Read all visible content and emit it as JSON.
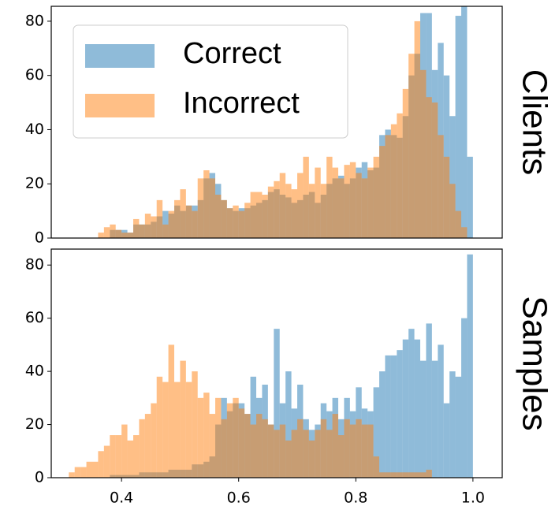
{
  "chart_data": [
    {
      "type": "histogram",
      "title": "Clients",
      "alpha": 0.5,
      "legend": "upper left",
      "bins": [
        0.3,
        0.31,
        0.32,
        0.33,
        0.34,
        0.35,
        0.36,
        0.37,
        0.38,
        0.39,
        0.4,
        0.41,
        0.42,
        0.43,
        0.44,
        0.45,
        0.46,
        0.47,
        0.48,
        0.49,
        0.5,
        0.51,
        0.52,
        0.53,
        0.54,
        0.55,
        0.56,
        0.57,
        0.58,
        0.59,
        0.6,
        0.61,
        0.62,
        0.63,
        0.64,
        0.65,
        0.66,
        0.67,
        0.68,
        0.69,
        0.7,
        0.71,
        0.72,
        0.73,
        0.74,
        0.75,
        0.76,
        0.77,
        0.78,
        0.79,
        0.8,
        0.81,
        0.82,
        0.83,
        0.84,
        0.85,
        0.86,
        0.87,
        0.88,
        0.89,
        0.9,
        0.91,
        0.92,
        0.93,
        0.94,
        0.95,
        0.96,
        0.97,
        0.98,
        0.99,
        1.0
      ],
      "xlim": [
        0.28,
        1.05
      ],
      "ylim": [
        0,
        85.5
      ],
      "yticks": [
        0,
        20,
        40,
        60,
        80
      ],
      "series": [
        {
          "name": "Correct",
          "color": "#1f77b4",
          "values": [
            0,
            0,
            0,
            0,
            0,
            0,
            0,
            0,
            3,
            3,
            3,
            2,
            5,
            5,
            5,
            6,
            8,
            10,
            9,
            12,
            10,
            12,
            12,
            14,
            22,
            24,
            20,
            14,
            11,
            10,
            11,
            11,
            12,
            13,
            14,
            17,
            18,
            16,
            15,
            13,
            14,
            16,
            17,
            13,
            16,
            20,
            22,
            23,
            20,
            22,
            26,
            28,
            25,
            26,
            38,
            40,
            38,
            37,
            45,
            60,
            68,
            83,
            83,
            62,
            72,
            60,
            45,
            82,
            88,
            30
          ]
        },
        {
          "name": "Incorrect",
          "color": "#ff7f0e",
          "values": [
            0,
            0,
            0,
            0,
            0,
            0,
            2,
            4,
            5,
            3,
            2,
            2,
            7,
            5,
            9,
            8,
            14,
            5,
            10,
            14,
            18,
            12,
            10,
            22,
            25,
            22,
            16,
            14,
            11,
            12,
            10,
            13,
            17,
            17,
            16,
            19,
            21,
            24,
            20,
            18,
            24,
            30,
            20,
            26,
            20,
            30,
            26,
            22,
            27,
            28,
            24,
            22,
            26,
            30,
            34,
            38,
            42,
            46,
            55,
            68,
            80,
            62,
            52,
            50,
            38,
            30,
            20,
            10,
            4,
            0
          ]
        }
      ]
    },
    {
      "type": "histogram",
      "title": "Samples",
      "alpha": 0.5,
      "bins": [
        0.3,
        0.31,
        0.32,
        0.33,
        0.34,
        0.35,
        0.36,
        0.37,
        0.38,
        0.39,
        0.4,
        0.41,
        0.42,
        0.43,
        0.44,
        0.45,
        0.46,
        0.47,
        0.48,
        0.49,
        0.5,
        0.51,
        0.52,
        0.53,
        0.54,
        0.55,
        0.56,
        0.57,
        0.58,
        0.59,
        0.6,
        0.61,
        0.62,
        0.63,
        0.64,
        0.65,
        0.66,
        0.67,
        0.68,
        0.69,
        0.7,
        0.71,
        0.72,
        0.73,
        0.74,
        0.75,
        0.76,
        0.77,
        0.78,
        0.79,
        0.8,
        0.81,
        0.82,
        0.83,
        0.84,
        0.85,
        0.86,
        0.87,
        0.88,
        0.89,
        0.9,
        0.91,
        0.92,
        0.93,
        0.94,
        0.95,
        0.96,
        0.97,
        0.98,
        0.99,
        1.0
      ],
      "xlim": [
        0.28,
        1.05
      ],
      "ylim": [
        0,
        86
      ],
      "yticks": [
        0,
        20,
        40,
        60,
        80
      ],
      "xticks": [
        0.4,
        0.6,
        0.8,
        {
          "value": 1.0,
          "label": "1.0"
        }
      ],
      "series": [
        {
          "color": "#1f77b4",
          "values": [
            0,
            0,
            0,
            0,
            0,
            0,
            0,
            0,
            1,
            1,
            1,
            1,
            1,
            2,
            2,
            2,
            2,
            2,
            3,
            3,
            3,
            3,
            5,
            5,
            6,
            8,
            20,
            30,
            25,
            28,
            28,
            24,
            38,
            30,
            35,
            20,
            56,
            28,
            40,
            26,
            35,
            22,
            18,
            20,
            28,
            25,
            30,
            22,
            30,
            25,
            34,
            26,
            25,
            34,
            40,
            46,
            46,
            48,
            52,
            56,
            52,
            44,
            58,
            44,
            50,
            28,
            40,
            38,
            60,
            84
          ]
        },
        {
          "color": "#ff7f0e",
          "values": [
            0,
            2,
            4,
            4,
            6,
            6,
            10,
            12,
            16,
            16,
            20,
            14,
            16,
            22,
            24,
            28,
            38,
            36,
            50,
            36,
            44,
            36,
            40,
            30,
            32,
            24,
            30,
            22,
            28,
            30,
            26,
            24,
            20,
            24,
            22,
            20,
            18,
            20,
            14,
            18,
            22,
            18,
            14,
            18,
            22,
            18,
            24,
            16,
            22,
            20,
            22,
            20,
            20,
            8,
            2,
            2,
            2,
            2,
            2,
            2,
            2,
            2,
            3,
            0,
            0,
            0,
            0,
            0,
            0,
            0
          ]
        }
      ]
    }
  ]
}
